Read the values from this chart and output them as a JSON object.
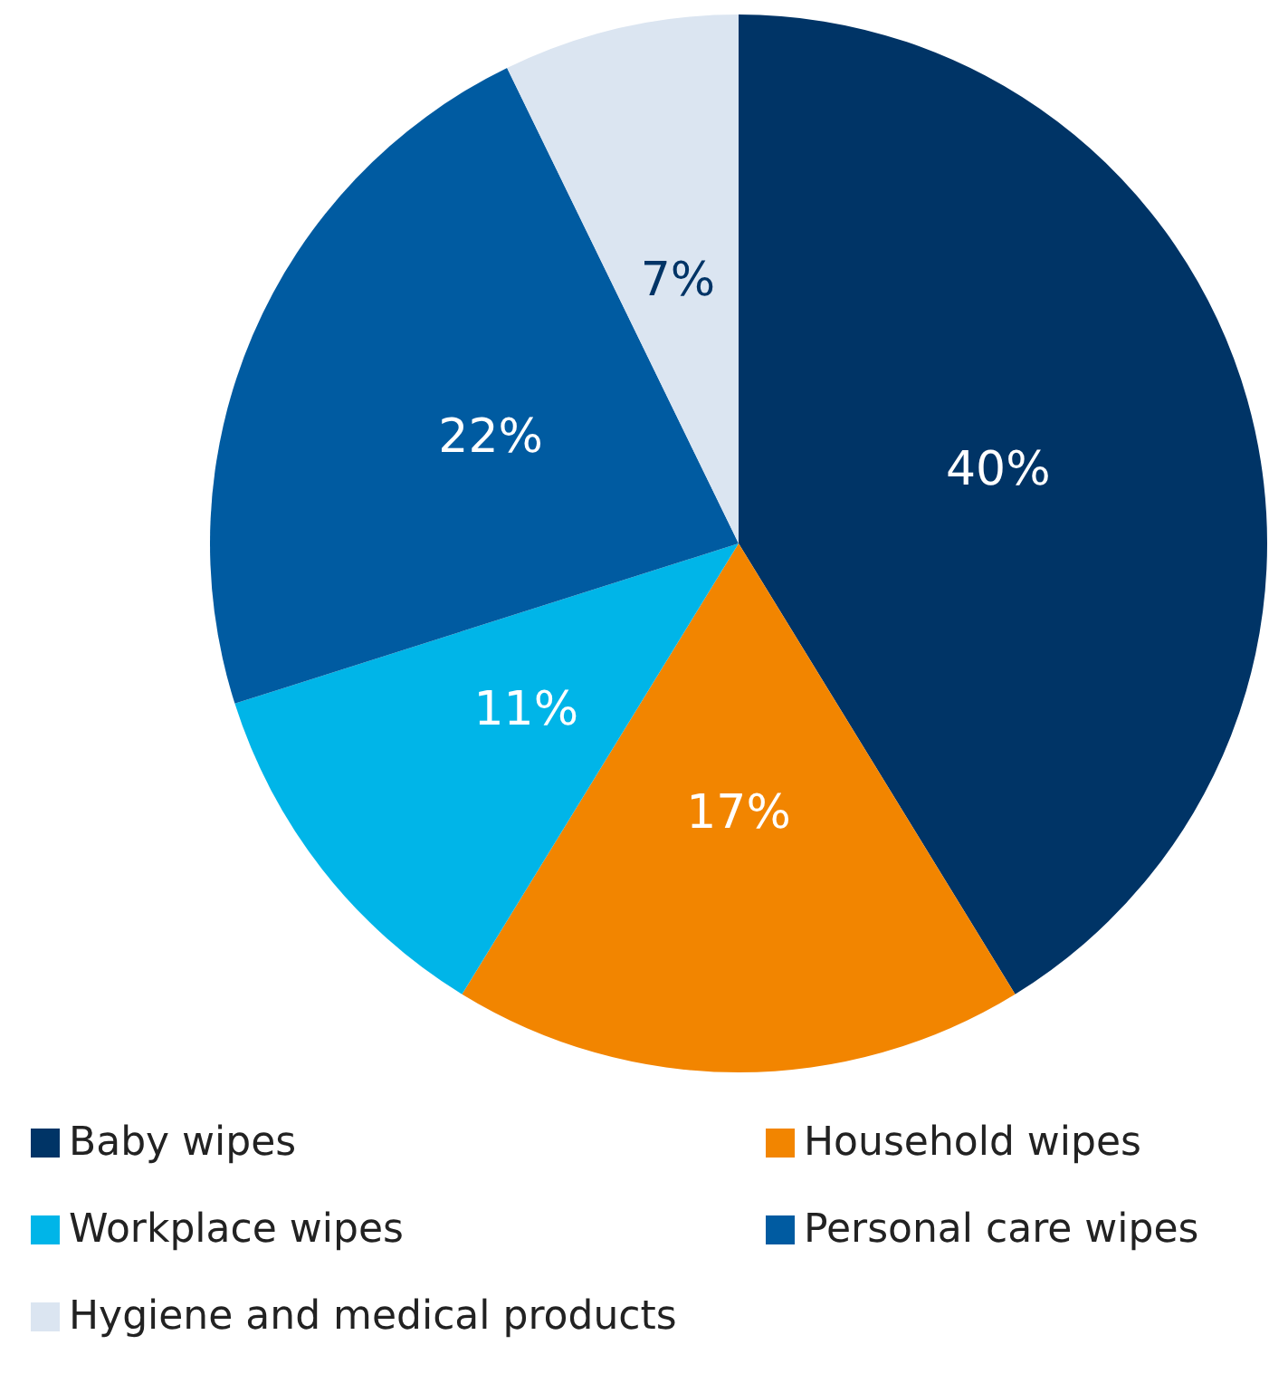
{
  "chart_data": {
    "type": "pie",
    "categories": [
      "Baby wipes",
      "Household wipes",
      "Workplace wipes",
      "Personal care wipes",
      "Hygiene and medical products"
    ],
    "values": [
      40,
      17,
      11,
      22,
      7
    ],
    "colors": [
      "#003466",
      "#f28500",
      "#00b5e8",
      "#005ba1",
      "#dbe5f1"
    ],
    "value_labels": [
      "40%",
      "17%",
      "11%",
      "22%",
      "7%"
    ],
    "legend": "bottom"
  }
}
